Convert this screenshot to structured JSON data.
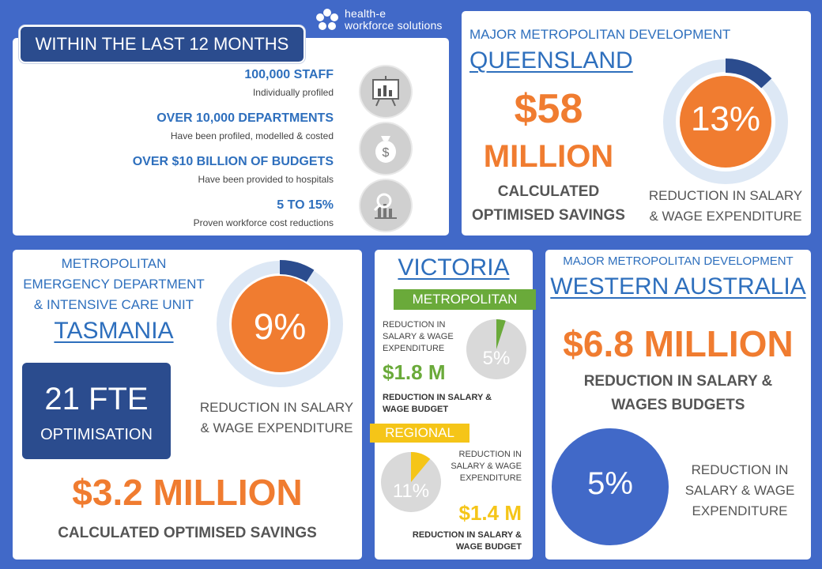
{
  "logo": {
    "line1": "health-e",
    "line2": "workforce solutions",
    "icon": "flower-logo-icon"
  },
  "last12": {
    "title": "WITHIN THE LAST 12 MONTHS",
    "stats": [
      {
        "headline": "100,000 STAFF",
        "sub": "Individually profiled",
        "icon": "presentation-chart-icon"
      },
      {
        "headline": "OVER 10,000 DEPARTMENTS",
        "sub": "Have been profiled, modelled & costed",
        "icon": "money-bag-icon"
      },
      {
        "headline": "OVER $10 BILLION OF BUDGETS",
        "sub": "Have been provided to hospitals",
        "icon": "magnify-chart-icon"
      },
      {
        "headline": "5 TO 15%",
        "sub": "Proven workforce cost reductions",
        "icon": "magnify-chart-icon"
      }
    ]
  },
  "queensland": {
    "kicker": "MAJOR METROPOLITAN  DEVELOPMENT",
    "region": "QUEENSLAND",
    "amount_line1": "$58",
    "amount_line2": "MILLION",
    "savings_line1": "CALCULATED",
    "savings_line2": "OPTIMISED SAVINGS",
    "percent_label": "13%",
    "percent_value": 13,
    "caption_line1": "REDUCTION  IN SALARY",
    "caption_line2": "& WAGE EXPENDITURE",
    "colors": {
      "ring": "#dde8f5",
      "fill": "#2b4c8e",
      "center": "#f07c30"
    }
  },
  "tasmania": {
    "kicker_line1": "METROPOLITAN",
    "kicker_line2": "EMERGENCY  DEPARTMENT",
    "kicker_line3": "& INTENSIVE CARE UNIT",
    "region": "TASMANIA",
    "fte_value": "21 FTE",
    "fte_label": "OPTIMISATION",
    "percent_label": "9%",
    "percent_value": 9,
    "caption_line1": "REDUCTION  IN SALARY",
    "caption_line2": "& WAGE EXPENDITURE",
    "amount": "$3.2 MILLION",
    "savings": "CALCULATED OPTIMISED SAVINGS"
  },
  "victoria": {
    "region": "VICTORIA",
    "metro": {
      "tag": "METROPOLITAN",
      "tag_color": "#6aaa3a",
      "desc_line1": "REDUCTION IN",
      "desc_line2": "SALARY & WAGE",
      "desc_line3": "EXPENDITURE",
      "percent_label": "5%",
      "percent_value": 5,
      "amount": "$1.8 M",
      "budget_line1": "REDUCTION IN SALARY &",
      "budget_line2": "WAGE BUDGET"
    },
    "regional": {
      "tag": "REGIONAL",
      "tag_color": "#f5c518",
      "desc_line1": "REDUCTION IN",
      "desc_line2": "SALARY & WAGE",
      "desc_line3": "EXPENDITURE",
      "percent_label": "11%",
      "percent_value": 11,
      "amount": "$1.4 M",
      "budget_line1": "REDUCTION IN SALARY &",
      "budget_line2": "WAGE BUDGET"
    }
  },
  "western_australia": {
    "kicker": "MAJOR METROPOLITAN DEVELOPMENT",
    "region": "WESTERN AUSTRALIA",
    "amount": "$6.8 MILLION",
    "budget_line1": "REDUCTION IN SALARY &",
    "budget_line2": "WAGES BUDGETS",
    "percent_label": "5%",
    "caption_line1": "REDUCTION  IN",
    "caption_line2": "SALARY & WAGE",
    "caption_line3": "EXPENDITURE",
    "circle_color": "#4169c8"
  }
}
